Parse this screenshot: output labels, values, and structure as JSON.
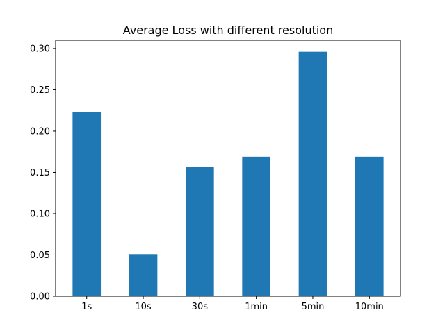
{
  "chart_data": {
    "type": "bar",
    "title": "Average Loss with different resolution",
    "xlabel": "",
    "ylabel": "",
    "categories": [
      "1s",
      "10s",
      "30s",
      "1min",
      "5min",
      "10min"
    ],
    "values": [
      0.223,
      0.051,
      0.157,
      0.169,
      0.296,
      0.169
    ],
    "ylim": [
      0,
      0.31
    ],
    "yticks": [
      0.0,
      0.05,
      0.1,
      0.15,
      0.2,
      0.25,
      0.3
    ],
    "ytick_labels": [
      "0.00",
      "0.05",
      "0.10",
      "0.15",
      "0.20",
      "0.25",
      "0.30"
    ],
    "bar_color": "#1f77b4",
    "grid": false,
    "legend": "none"
  }
}
